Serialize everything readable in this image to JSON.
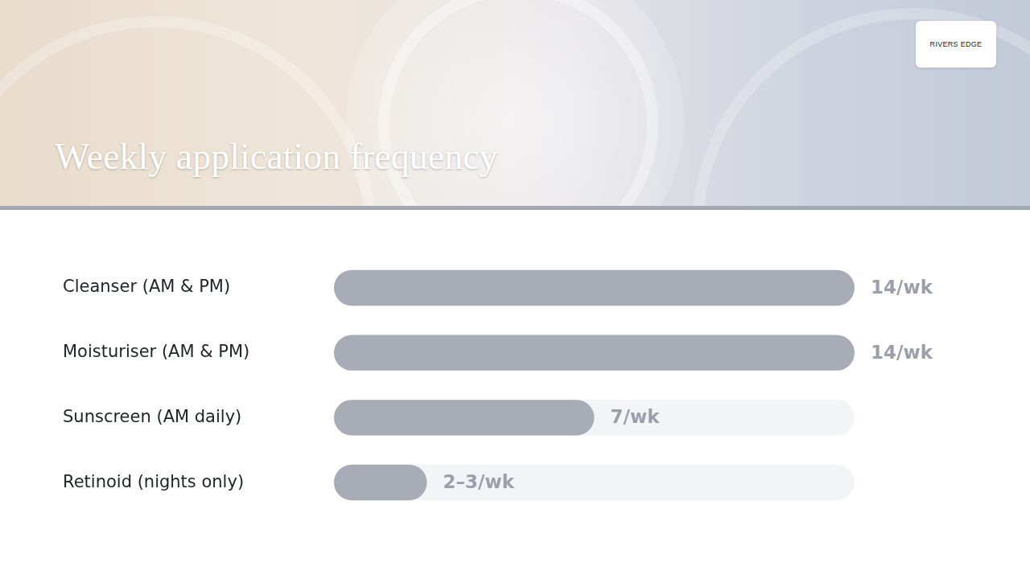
{
  "header": {
    "brand": "RIVERS EDGE"
  },
  "chart_data": {
    "type": "bar",
    "orientation": "horizontal",
    "title": "Weekly application frequency",
    "categories": [
      "Cleanser (AM & PM)",
      "Moisturiser (AM & PM)",
      "Sunscreen (AM daily)",
      "Retinoid (nights only)"
    ],
    "values": [
      14,
      14,
      7,
      2.5
    ],
    "value_labels": [
      "14/wk",
      "14/wk",
      "7/wk",
      "2–3/wk"
    ],
    "color": "#a7acb7",
    "xlim": [
      0,
      14
    ],
    "grid": false,
    "data_labels": true,
    "tick_labels": "y"
  }
}
